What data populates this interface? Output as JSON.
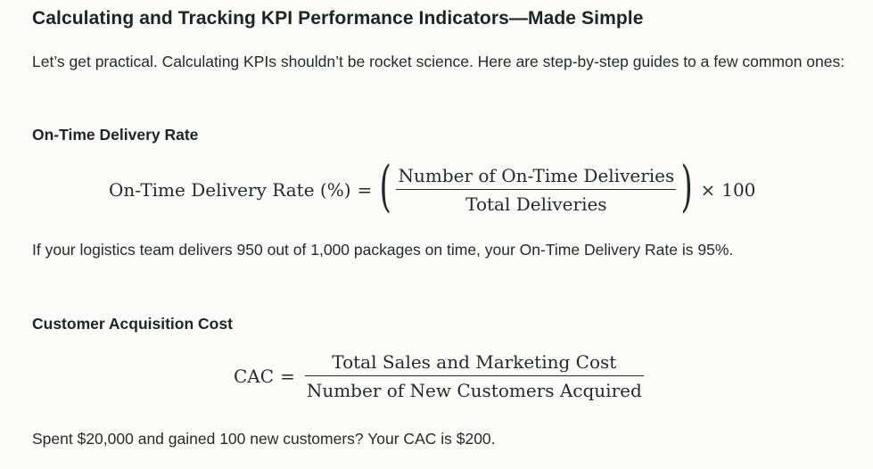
{
  "title": "Calculating and Tracking KPI Performance Indicators—Made Simple",
  "intro": "Let’s get practical. Calculating KPIs shouldn’t be rocket science. Here are step-by-step guides to a few common ones:",
  "sections": [
    {
      "heading": "On-Time Delivery Rate",
      "formula": {
        "lhs": "On-Time Delivery Rate (%)",
        "equals": "=",
        "numerator": "Number of On-Time Deliveries",
        "denominator": "Total Deliveries",
        "open_paren": "(",
        "close_paren": ")",
        "multiplier_symbol": "×",
        "multiplier": "100"
      },
      "example": "If your logistics team delivers 950 out of 1,000 packages on time, your On-Time Delivery Rate is 95%."
    },
    {
      "heading": "Customer Acquisition Cost",
      "formula": {
        "lhs": "CAC",
        "equals": "=",
        "numerator": "Total Sales and Marketing Cost",
        "denominator": "Number of New Customers Acquired"
      },
      "example": "Spent $20,000 and gained 100 new customers? Your CAC is $200."
    }
  ]
}
